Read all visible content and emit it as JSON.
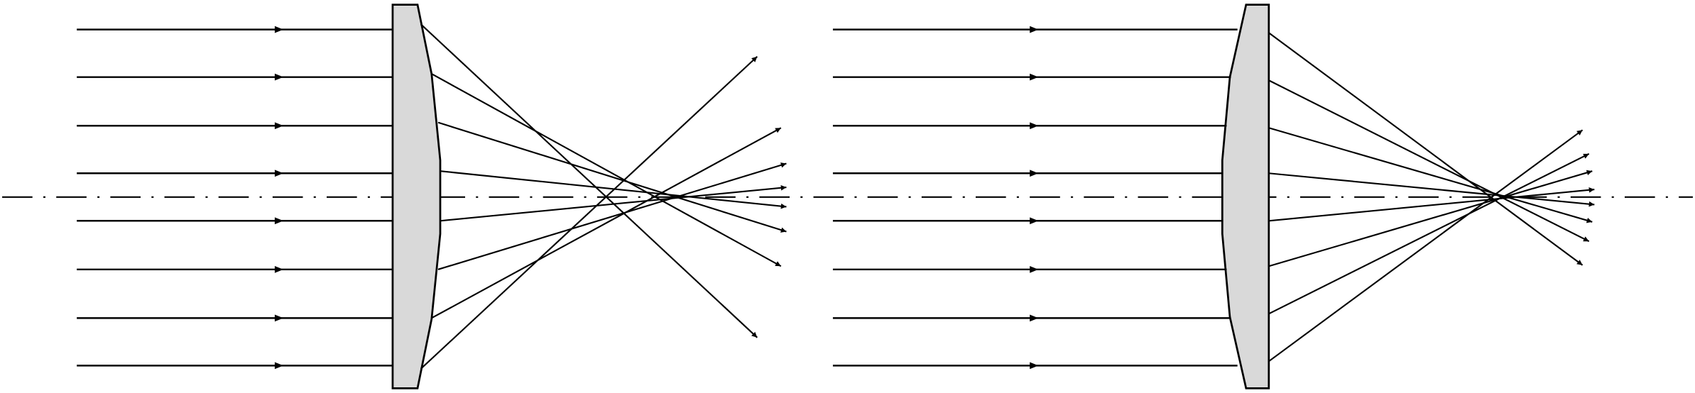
{
  "figure": {
    "panels": [
      {
        "name": "spherical-lens",
        "ray_count": 8,
        "focus": "spread"
      },
      {
        "name": "aspheric-lens",
        "ray_count": 8,
        "focus": "tight"
      }
    ],
    "colors": {
      "background": "#ffffff",
      "stroke": "#000000",
      "lens_fill": "#d9d9d9"
    },
    "optical_axis_style": "dash-dot"
  }
}
